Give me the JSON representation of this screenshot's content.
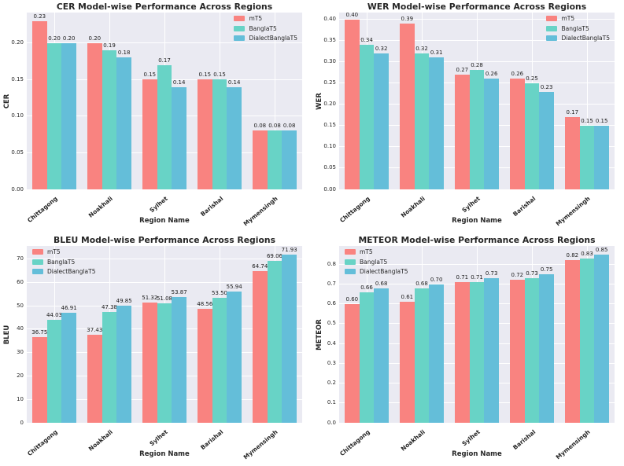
{
  "figure": {
    "rows": 2,
    "cols": 2
  },
  "palette": {
    "figure_bg": "#ffffff",
    "plot_bg": "#EAEAF2",
    "grid": "#FFFFFF",
    "text": "#262626",
    "label_text": "#1a1a1a",
    "series": {
      "mT5": "#F98380",
      "BanglaT5": "#68D3C6",
      "DialectBanglaT5": "#64BED9"
    }
  },
  "legend_items": [
    "mT5",
    "BanglaT5",
    "DialectBanglaT5"
  ],
  "chart_data": [
    {
      "id": "cer",
      "type": "bar",
      "title": "CER Model-wise Performance Across Regions",
      "xlabel": "Region Name",
      "ylabel": "CER",
      "categories": [
        "Chittagong",
        "Noakhali",
        "Sylhet",
        "Barishal",
        "Mymensingh"
      ],
      "series": [
        {
          "name": "mT5",
          "values": [
            0.23,
            0.2,
            0.15,
            0.15,
            0.08
          ],
          "labels": [
            "0.23",
            "0.20",
            "0.15",
            "0.15",
            "0.08"
          ]
        },
        {
          "name": "BanglaT5",
          "values": [
            0.2,
            0.19,
            0.17,
            0.15,
            0.08
          ],
          "labels": [
            "0.20",
            "0.19",
            "0.17",
            "0.15",
            "0.08"
          ]
        },
        {
          "name": "DialectBanglaT5",
          "values": [
            0.2,
            0.18,
            0.14,
            0.14,
            0.08
          ],
          "labels": [
            "0.20",
            "0.18",
            "0.14",
            "0.14",
            "0.08"
          ]
        }
      ],
      "ylim": [
        0,
        0.2415
      ],
      "yticks": [
        0.0,
        0.05,
        0.1,
        0.15,
        0.2
      ],
      "ytick_labels": [
        "0.00",
        "0.05",
        "0.10",
        "0.15",
        "0.20"
      ],
      "grid": true,
      "legend_position": "top-right"
    },
    {
      "id": "wer",
      "type": "bar",
      "title": "WER Model-wise Performance Across Regions",
      "xlabel": "Region Name",
      "ylabel": "WER",
      "categories": [
        "Chittagong",
        "Noakhali",
        "Sylhet",
        "Barishal",
        "Mymensingh"
      ],
      "series": [
        {
          "name": "mT5",
          "values": [
            0.4,
            0.39,
            0.27,
            0.26,
            0.17
          ],
          "labels": [
            "0.40",
            "0.39",
            "0.27",
            "0.26",
            "0.17"
          ]
        },
        {
          "name": "BanglaT5",
          "values": [
            0.34,
            0.32,
            0.28,
            0.25,
            0.15
          ],
          "labels": [
            "0.34",
            "0.32",
            "0.28",
            "0.25",
            "0.15"
          ]
        },
        {
          "name": "DialectBanglaT5",
          "values": [
            0.32,
            0.31,
            0.26,
            0.23,
            0.15
          ],
          "labels": [
            "0.32",
            "0.31",
            "0.26",
            "0.23",
            "0.15"
          ]
        }
      ],
      "ylim": [
        0,
        0.4158
      ],
      "yticks": [
        0.0,
        0.05,
        0.1,
        0.15,
        0.2,
        0.25,
        0.3,
        0.35,
        0.4
      ],
      "ytick_labels": [
        "0.00",
        "0.05",
        "0.10",
        "0.15",
        "0.20",
        "0.25",
        "0.30",
        "0.35",
        "0.40"
      ],
      "grid": true,
      "legend_position": "top-right"
    },
    {
      "id": "bleu",
      "type": "bar",
      "title": "BLEU Model-wise Performance Across Regions",
      "xlabel": "Region Name",
      "ylabel": "BLEU",
      "categories": [
        "Chittagong",
        "Noakhali",
        "Sylhet",
        "Barishal",
        "Mymensingh"
      ],
      "series": [
        {
          "name": "mT5",
          "values": [
            36.75,
            37.43,
            51.32,
            48.56,
            64.74
          ],
          "labels": [
            "36.75",
            "37.43",
            "51.32",
            "48.56",
            "64.74"
          ]
        },
        {
          "name": "BanglaT5",
          "values": [
            44.03,
            47.38,
            51.08,
            53.5,
            69.06
          ],
          "labels": [
            "44.03",
            "47.38",
            "51.08",
            "53.50",
            "69.06"
          ]
        },
        {
          "name": "DialectBanglaT5",
          "values": [
            46.91,
            49.85,
            53.87,
            55.94,
            71.93
          ],
          "labels": [
            "46.91",
            "49.85",
            "53.87",
            "55.94",
            "71.93"
          ]
        }
      ],
      "ylim": [
        0,
        75.53
      ],
      "yticks": [
        0,
        10,
        20,
        30,
        40,
        50,
        60,
        70
      ],
      "ytick_labels": [
        "0",
        "10",
        "20",
        "30",
        "40",
        "50",
        "60",
        "70"
      ],
      "grid": true,
      "legend_position": "top-left"
    },
    {
      "id": "meteor",
      "type": "bar",
      "title": "METEOR Model-wise Performance Across Regions",
      "xlabel": "Region Name",
      "ylabel": "METEOR",
      "categories": [
        "Chittagong",
        "Noakhali",
        "Sylhet",
        "Barishal",
        "Mymensingh"
      ],
      "series": [
        {
          "name": "mT5",
          "values": [
            0.6,
            0.61,
            0.71,
            0.72,
            0.82
          ],
          "labels": [
            "0.60",
            "0.61",
            "0.71",
            "0.72",
            "0.82"
          ]
        },
        {
          "name": "BanglaT5",
          "values": [
            0.66,
            0.68,
            0.71,
            0.73,
            0.83
          ],
          "labels": [
            "0.66",
            "0.68",
            "0.71",
            "0.73",
            "0.83"
          ]
        },
        {
          "name": "DialectBanglaT5",
          "values": [
            0.68,
            0.7,
            0.73,
            0.75,
            0.85
          ],
          "labels": [
            "0.68",
            "0.70",
            "0.73",
            "0.75",
            "0.85"
          ]
        }
      ],
      "ylim": [
        0,
        0.8925
      ],
      "yticks": [
        0.0,
        0.1,
        0.2,
        0.3,
        0.4,
        0.5,
        0.6,
        0.7,
        0.8
      ],
      "ytick_labels": [
        "0.0",
        "0.1",
        "0.2",
        "0.3",
        "0.4",
        "0.5",
        "0.6",
        "0.7",
        "0.8"
      ],
      "grid": true,
      "legend_position": "top-left"
    }
  ]
}
